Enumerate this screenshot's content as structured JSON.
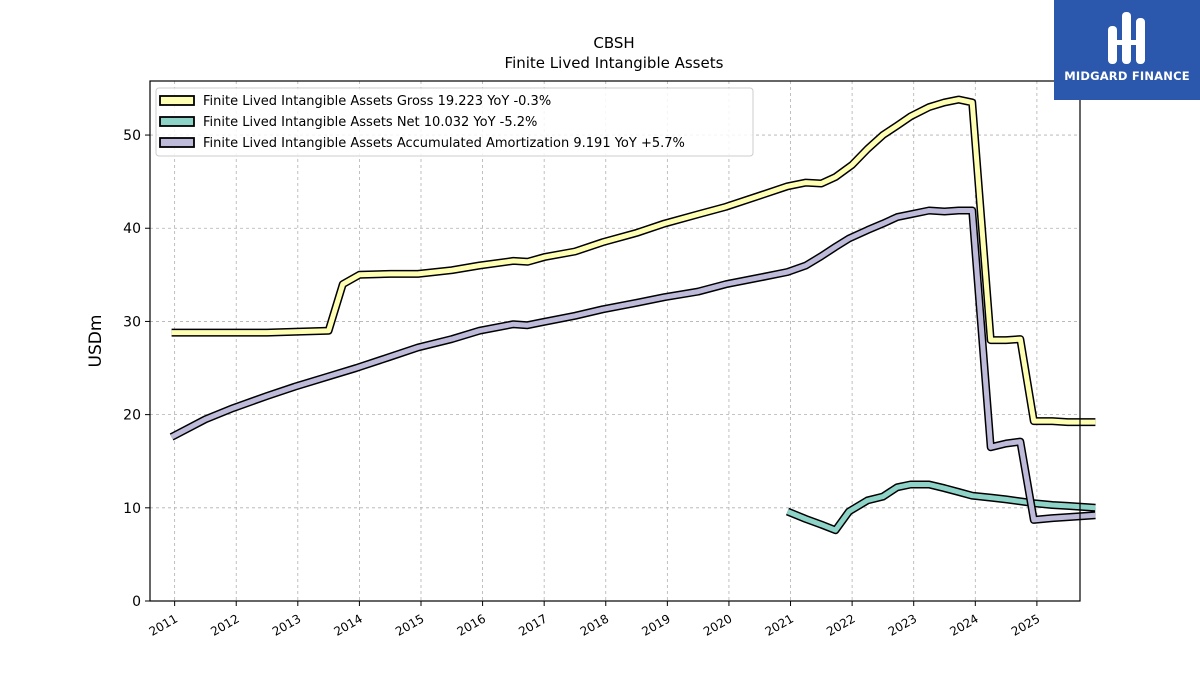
{
  "header": {
    "title": "CBSH",
    "subtitle": "Finite Lived Intangible Assets"
  },
  "brand": {
    "name": "MIDGARD FINANCE",
    "color": "#2b58ad"
  },
  "chart_data": {
    "type": "line",
    "title": "CBSH",
    "subtitle": "Finite Lived Intangible Assets",
    "xlabel": "",
    "ylabel": "USDm",
    "xlim": [
      2010.6,
      2025.7
    ],
    "ylim": [
      0,
      55.8
    ],
    "yticks": [
      0,
      10,
      20,
      30,
      40,
      50
    ],
    "xticks": [
      "2011",
      "2012",
      "2013",
      "2014",
      "2015",
      "2016",
      "2017",
      "2018",
      "2019",
      "2020",
      "2021",
      "2022",
      "2023",
      "2024",
      "2025"
    ],
    "grid": true,
    "legend_position": "top-left",
    "series": [
      {
        "name": "Finite Lived Intangible Assets Gross",
        "legend": "Finite Lived Intangible Assets Gross  19.223 YoY -0.3%",
        "color": "#ffffb3",
        "points": [
          [
            2010.95,
            28.8
          ],
          [
            2011.5,
            28.8
          ],
          [
            2012.0,
            28.8
          ],
          [
            2012.5,
            28.8
          ],
          [
            2012.95,
            28.9
          ],
          [
            2013.5,
            29.0
          ],
          [
            2013.73,
            34.0
          ],
          [
            2014.0,
            35.0
          ],
          [
            2014.5,
            35.1
          ],
          [
            2014.95,
            35.1
          ],
          [
            2015.5,
            35.5
          ],
          [
            2015.95,
            36.0
          ],
          [
            2016.5,
            36.5
          ],
          [
            2016.73,
            36.4
          ],
          [
            2017.0,
            36.9
          ],
          [
            2017.5,
            37.5
          ],
          [
            2017.95,
            38.5
          ],
          [
            2018.5,
            39.5
          ],
          [
            2018.95,
            40.5
          ],
          [
            2019.5,
            41.5
          ],
          [
            2019.95,
            42.3
          ],
          [
            2020.5,
            43.5
          ],
          [
            2020.95,
            44.5
          ],
          [
            2021.25,
            44.9
          ],
          [
            2021.5,
            44.8
          ],
          [
            2021.73,
            45.5
          ],
          [
            2022.0,
            46.8
          ],
          [
            2022.25,
            48.5
          ],
          [
            2022.5,
            50.0
          ],
          [
            2022.73,
            51.0
          ],
          [
            2022.95,
            52.0
          ],
          [
            2023.25,
            53.0
          ],
          [
            2023.5,
            53.5
          ],
          [
            2023.73,
            53.8
          ],
          [
            2023.95,
            53.5
          ],
          [
            2024.25,
            28.0
          ],
          [
            2024.5,
            28.0
          ],
          [
            2024.73,
            28.1
          ],
          [
            2024.95,
            19.3
          ],
          [
            2025.25,
            19.3
          ],
          [
            2025.5,
            19.2
          ],
          [
            2025.95,
            19.2
          ]
        ]
      },
      {
        "name": "Finite Lived Intangible Assets Net",
        "legend": "Finite Lived Intangible Assets Net  10.032 YoY -5.2%",
        "color": "#8dd3c7",
        "points": [
          [
            2020.95,
            9.6
          ],
          [
            2021.25,
            8.8
          ],
          [
            2021.5,
            8.2
          ],
          [
            2021.73,
            7.6
          ],
          [
            2021.95,
            9.6
          ],
          [
            2022.25,
            10.8
          ],
          [
            2022.5,
            11.2
          ],
          [
            2022.73,
            12.2
          ],
          [
            2022.95,
            12.5
          ],
          [
            2023.25,
            12.5
          ],
          [
            2023.5,
            12.1
          ],
          [
            2023.73,
            11.7
          ],
          [
            2023.95,
            11.3
          ],
          [
            2024.25,
            11.1
          ],
          [
            2024.5,
            10.9
          ],
          [
            2024.73,
            10.7
          ],
          [
            2024.95,
            10.5
          ],
          [
            2025.25,
            10.3
          ],
          [
            2025.5,
            10.2
          ],
          [
            2025.95,
            10.0
          ]
        ]
      },
      {
        "name": "Finite Lived Intangible Assets Accumulated Amortization",
        "legend": "Finite Lived Intangible Assets Accumulated Amortization  9.191 YoY +5.7%",
        "color": "#bebada",
        "points": [
          [
            2010.95,
            17.6
          ],
          [
            2011.5,
            19.5
          ],
          [
            2011.95,
            20.7
          ],
          [
            2012.5,
            22.0
          ],
          [
            2012.95,
            23.0
          ],
          [
            2013.5,
            24.1
          ],
          [
            2013.95,
            25.0
          ],
          [
            2014.5,
            26.2
          ],
          [
            2014.95,
            27.2
          ],
          [
            2015.5,
            28.1
          ],
          [
            2015.95,
            29.0
          ],
          [
            2016.5,
            29.7
          ],
          [
            2016.73,
            29.6
          ],
          [
            2016.95,
            29.9
          ],
          [
            2017.5,
            30.6
          ],
          [
            2017.95,
            31.3
          ],
          [
            2018.5,
            32.0
          ],
          [
            2018.95,
            32.6
          ],
          [
            2019.5,
            33.2
          ],
          [
            2019.95,
            34.0
          ],
          [
            2020.5,
            34.7
          ],
          [
            2020.95,
            35.3
          ],
          [
            2021.25,
            36.0
          ],
          [
            2021.5,
            37.0
          ],
          [
            2021.73,
            38.0
          ],
          [
            2021.95,
            38.9
          ],
          [
            2022.25,
            39.8
          ],
          [
            2022.5,
            40.5
          ],
          [
            2022.73,
            41.2
          ],
          [
            2022.95,
            41.5
          ],
          [
            2023.25,
            41.9
          ],
          [
            2023.5,
            41.8
          ],
          [
            2023.73,
            41.9
          ],
          [
            2023.95,
            41.9
          ],
          [
            2024.25,
            16.5
          ],
          [
            2024.5,
            16.9
          ],
          [
            2024.73,
            17.1
          ],
          [
            2024.95,
            8.7
          ],
          [
            2025.25,
            8.9
          ],
          [
            2025.5,
            9.0
          ],
          [
            2025.95,
            9.2
          ]
        ]
      }
    ]
  }
}
